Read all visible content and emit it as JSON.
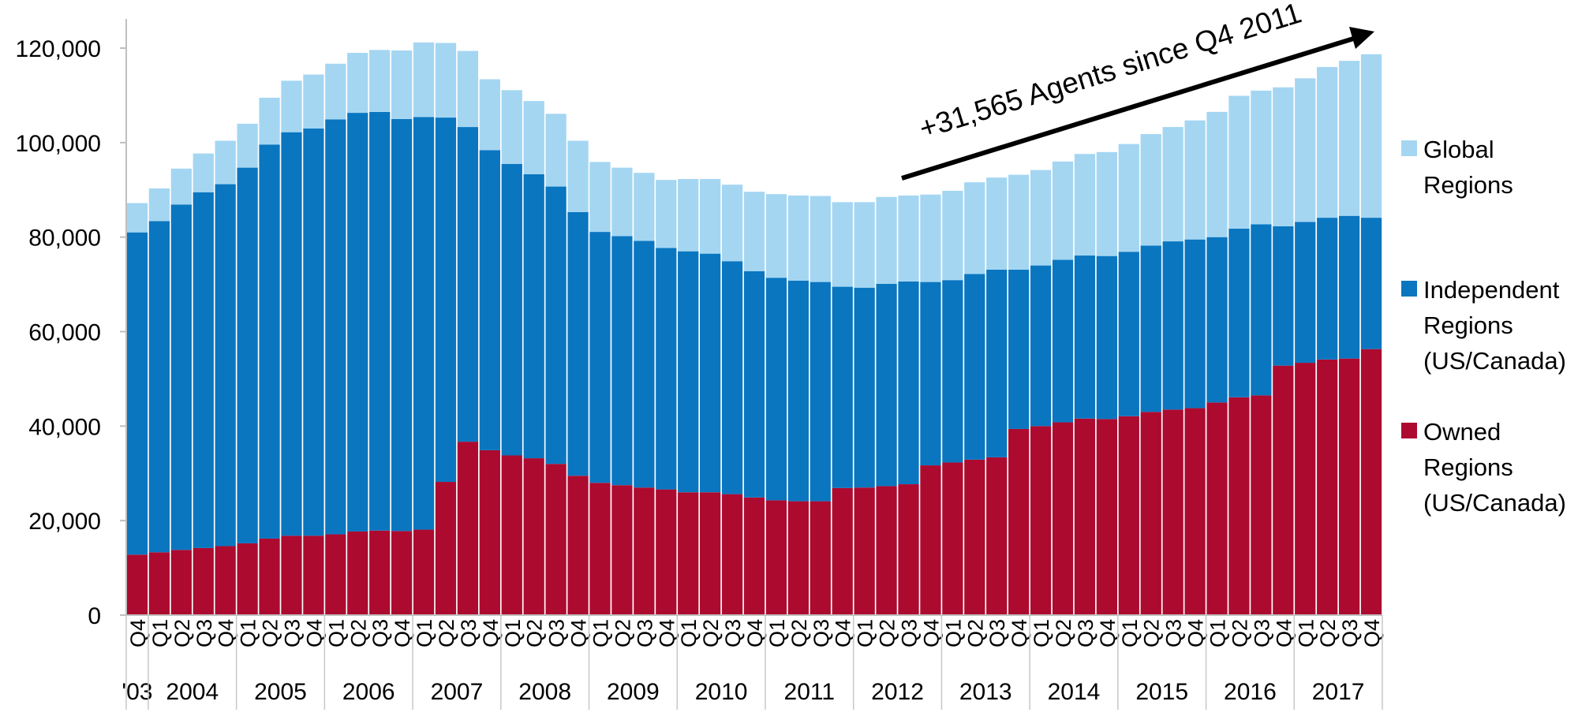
{
  "chart_data": {
    "type": "bar",
    "stacked": true,
    "title": "",
    "xlabel": "",
    "ylabel": "",
    "ylim": [
      0,
      120000
    ],
    "yticks": [
      0,
      20000,
      40000,
      60000,
      80000,
      100000,
      120000
    ],
    "ytick_labels": [
      "0",
      "20,000",
      "40,000",
      "60,000",
      "80,000",
      "100,000",
      "120,000"
    ],
    "grid": false,
    "legend_position": "right",
    "categories": [
      "Q4",
      "Q1",
      "Q2",
      "Q3",
      "Q4",
      "Q1",
      "Q2",
      "Q3",
      "Q4",
      "Q1",
      "Q2",
      "Q3",
      "Q4",
      "Q1",
      "Q2",
      "Q3",
      "Q4",
      "Q1",
      "Q2",
      "Q3",
      "Q4",
      "Q1",
      "Q2",
      "Q3",
      "Q4",
      "Q1",
      "Q2",
      "Q3",
      "Q4",
      "Q1",
      "Q2",
      "Q3",
      "Q4",
      "Q1",
      "Q2",
      "Q3",
      "Q4",
      "Q1",
      "Q2",
      "Q3",
      "Q4",
      "Q1",
      "Q2",
      "Q3",
      "Q4",
      "Q1",
      "Q2",
      "Q3",
      "Q4",
      "Q1",
      "Q2",
      "Q3",
      "Q4",
      "Q1",
      "Q2",
      "Q3",
      "Q4"
    ],
    "year_groups": [
      {
        "label": "'03",
        "count": 1
      },
      {
        "label": "2004",
        "count": 4
      },
      {
        "label": "2005",
        "count": 4
      },
      {
        "label": "2006",
        "count": 4
      },
      {
        "label": "2007",
        "count": 4
      },
      {
        "label": "2008",
        "count": 4
      },
      {
        "label": "2009",
        "count": 4
      },
      {
        "label": "2010",
        "count": 4
      },
      {
        "label": "2011",
        "count": 4
      },
      {
        "label": "2012",
        "count": 4
      },
      {
        "label": "2013",
        "count": 4
      },
      {
        "label": "2014",
        "count": 4
      },
      {
        "label": "2015",
        "count": 4
      },
      {
        "label": "2016",
        "count": 4
      },
      {
        "label": "2017",
        "count": 4
      }
    ],
    "series": [
      {
        "name": "Owned Regions (US/Canada)",
        "color": "#ad0a2f",
        "values": [
          12800,
          13300,
          13800,
          14200,
          14600,
          15200,
          16200,
          16800,
          16800,
          17100,
          17700,
          17900,
          17800,
          18100,
          28200,
          36700,
          34900,
          33800,
          33200,
          32000,
          29500,
          28000,
          27500,
          27000,
          26600,
          26000,
          26000,
          25600,
          24900,
          24300,
          24100,
          24100,
          26900,
          27000,
          27300,
          27700,
          31700,
          32300,
          32900,
          33400,
          39400,
          40000,
          40800,
          41600,
          41500,
          42100,
          43000,
          43500,
          43800,
          45000,
          46100,
          46500,
          52800,
          53400,
          54100,
          54300,
          56300
        ]
      },
      {
        "name": "Independent Regions (US/Canada)",
        "color": "#0a76c0",
        "values": [
          68200,
          70100,
          73100,
          75300,
          76600,
          79500,
          83400,
          85400,
          86200,
          87800,
          88600,
          88600,
          87200,
          87300,
          77100,
          66600,
          63500,
          61700,
          60100,
          58700,
          55800,
          53100,
          52700,
          52200,
          51100,
          51000,
          50500,
          49300,
          47900,
          47100,
          46700,
          46400,
          42600,
          42300,
          42800,
          42900,
          38800,
          38600,
          39300,
          39700,
          33700,
          34000,
          34400,
          34500,
          34500,
          34800,
          35200,
          35600,
          35700,
          35000,
          35700,
          36200,
          29500,
          29800,
          30000,
          30200,
          27800
        ]
      },
      {
        "name": "Global Regions",
        "color": "#a4d6f2",
        "values": [
          6200,
          6900,
          7600,
          8200,
          9200,
          9300,
          9900,
          10900,
          11400,
          11800,
          12700,
          13100,
          14500,
          15800,
          15800,
          16100,
          15000,
          15600,
          15500,
          15400,
          15100,
          14800,
          14500,
          14400,
          14400,
          15300,
          15800,
          16200,
          16800,
          17700,
          18000,
          18200,
          17900,
          18100,
          18400,
          18200,
          18500,
          18900,
          19400,
          19500,
          20100,
          20200,
          20800,
          21500,
          22000,
          22800,
          23600,
          24200,
          25200,
          26500,
          28100,
          28300,
          29400,
          30400,
          31900,
          32800,
          34600
        ]
      }
    ],
    "legend": [
      {
        "lines": [
          "Global",
          "Regions"
        ],
        "color": "#a4d6f2"
      },
      {
        "lines": [
          "Independent",
          "Regions",
          "(US/Canada)"
        ],
        "color": "#0a76c0"
      },
      {
        "lines": [
          "Owned",
          "Regions",
          "(US/Canada)"
        ],
        "color": "#ad0a2f"
      }
    ],
    "annotation": "+31,565 Agents since Q4 2011"
  }
}
